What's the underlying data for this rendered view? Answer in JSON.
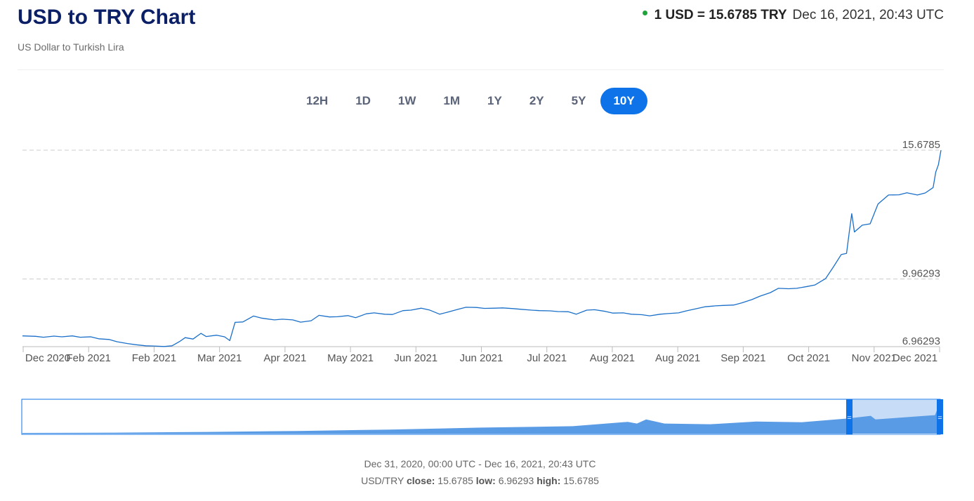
{
  "header": {
    "title": "USD to TRY Chart",
    "subtitle": "US Dollar to Turkish Lira",
    "rate": "1 USD = 15.6785 TRY",
    "timestamp": "Dec 16, 2021, 20:43 UTC",
    "status_color": "#21a33b"
  },
  "ranges": [
    {
      "label": "12H",
      "active": false
    },
    {
      "label": "1D",
      "active": false
    },
    {
      "label": "1W",
      "active": false
    },
    {
      "label": "1M",
      "active": false
    },
    {
      "label": "1Y",
      "active": false
    },
    {
      "label": "2Y",
      "active": false
    },
    {
      "label": "5Y",
      "active": false
    },
    {
      "label": "10Y",
      "active": true
    }
  ],
  "chart_data": {
    "type": "line",
    "title": "",
    "xlabel": "",
    "ylabel": "",
    "ylim": [
      6.96293,
      15.6785
    ],
    "y_ticks": [
      "15.6785",
      "9.96293",
      "6.96293"
    ],
    "x_ticks": [
      "Dec 2020",
      "Feb 2021",
      "Feb 2021",
      "Mar 2021",
      "Apr 2021",
      "May 2021",
      "Jun 2021",
      "Jun 2021",
      "Jul 2021",
      "Aug 2021",
      "Aug 2021",
      "Sep 2021",
      "Oct 2021",
      "Nov 2021",
      "Dec 2021"
    ],
    "x_start": "2020-12-31",
    "x_end": "2021-12-16",
    "series": [
      {
        "color": "#1a6fc9",
        "points": [
          [
            "2020-12-31",
            7.44
          ],
          [
            "2021-01-05",
            7.42
          ],
          [
            "2021-01-08",
            7.38
          ],
          [
            "2021-01-12",
            7.43
          ],
          [
            "2021-01-15",
            7.4
          ],
          [
            "2021-01-19",
            7.44
          ],
          [
            "2021-01-22",
            7.38
          ],
          [
            "2021-01-26",
            7.4
          ],
          [
            "2021-01-29",
            7.31
          ],
          [
            "2021-02-02",
            7.28
          ],
          [
            "2021-02-05",
            7.18
          ],
          [
            "2021-02-09",
            7.1
          ],
          [
            "2021-02-12",
            7.05
          ],
          [
            "2021-02-16",
            7.0
          ],
          [
            "2021-02-19",
            6.99
          ],
          [
            "2021-02-23",
            6.97
          ],
          [
            "2021-02-26",
            7.0
          ],
          [
            "2021-03-01",
            7.2
          ],
          [
            "2021-03-03",
            7.36
          ],
          [
            "2021-03-06",
            7.3
          ],
          [
            "2021-03-09",
            7.55
          ],
          [
            "2021-03-11",
            7.41
          ],
          [
            "2021-03-15",
            7.47
          ],
          [
            "2021-03-18",
            7.4
          ],
          [
            "2021-03-20",
            7.23
          ],
          [
            "2021-03-22",
            8.04
          ],
          [
            "2021-03-25",
            8.06
          ],
          [
            "2021-03-29",
            8.32
          ],
          [
            "2021-04-01",
            8.23
          ],
          [
            "2021-04-06",
            8.15
          ],
          [
            "2021-04-09",
            8.18
          ],
          [
            "2021-04-13",
            8.15
          ],
          [
            "2021-04-16",
            8.05
          ],
          [
            "2021-04-20",
            8.11
          ],
          [
            "2021-04-23",
            8.35
          ],
          [
            "2021-04-27",
            8.28
          ],
          [
            "2021-04-30",
            8.29
          ],
          [
            "2021-05-04",
            8.34
          ],
          [
            "2021-05-07",
            8.25
          ],
          [
            "2021-05-11",
            8.42
          ],
          [
            "2021-05-14",
            8.46
          ],
          [
            "2021-05-18",
            8.4
          ],
          [
            "2021-05-21",
            8.39
          ],
          [
            "2021-05-25",
            8.56
          ],
          [
            "2021-05-28",
            8.58
          ],
          [
            "2021-06-01",
            8.67
          ],
          [
            "2021-06-04",
            8.59
          ],
          [
            "2021-06-08",
            8.4
          ],
          [
            "2021-06-11",
            8.49
          ],
          [
            "2021-06-15",
            8.62
          ],
          [
            "2021-06-18",
            8.71
          ],
          [
            "2021-06-22",
            8.7
          ],
          [
            "2021-06-25",
            8.66
          ],
          [
            "2021-06-29",
            8.67
          ],
          [
            "2021-07-02",
            8.68
          ],
          [
            "2021-07-06",
            8.65
          ],
          [
            "2021-07-09",
            8.62
          ],
          [
            "2021-07-13",
            8.58
          ],
          [
            "2021-07-16",
            8.56
          ],
          [
            "2021-07-20",
            8.55
          ],
          [
            "2021-07-23",
            8.52
          ],
          [
            "2021-07-27",
            8.51
          ],
          [
            "2021-07-30",
            8.4
          ],
          [
            "2021-08-03",
            8.58
          ],
          [
            "2021-08-06",
            8.6
          ],
          [
            "2021-08-10",
            8.53
          ],
          [
            "2021-08-13",
            8.45
          ],
          [
            "2021-08-17",
            8.46
          ],
          [
            "2021-08-20",
            8.4
          ],
          [
            "2021-08-24",
            8.38
          ],
          [
            "2021-08-27",
            8.33
          ],
          [
            "2021-08-31",
            8.4
          ],
          [
            "2021-09-03",
            8.43
          ],
          [
            "2021-09-07",
            8.46
          ],
          [
            "2021-09-10",
            8.55
          ],
          [
            "2021-09-14",
            8.65
          ],
          [
            "2021-09-17",
            8.73
          ],
          [
            "2021-09-21",
            8.77
          ],
          [
            "2021-09-24",
            8.79
          ],
          [
            "2021-09-28",
            8.81
          ],
          [
            "2021-10-01",
            8.9
          ],
          [
            "2021-10-05",
            9.05
          ],
          [
            "2021-10-08",
            9.2
          ],
          [
            "2021-10-12",
            9.36
          ],
          [
            "2021-10-15",
            9.55
          ],
          [
            "2021-10-19",
            9.53
          ],
          [
            "2021-10-22",
            9.55
          ],
          [
            "2021-10-26",
            9.63
          ],
          [
            "2021-10-29",
            9.7
          ],
          [
            "2021-11-02",
            9.98
          ],
          [
            "2021-11-05",
            10.5
          ],
          [
            "2021-11-08",
            11.05
          ],
          [
            "2021-11-10",
            11.1
          ],
          [
            "2021-11-11",
            12.0
          ],
          [
            "2021-11-12",
            12.86
          ],
          [
            "2021-11-13",
            12.05
          ],
          [
            "2021-11-16",
            12.35
          ],
          [
            "2021-11-19",
            12.41
          ],
          [
            "2021-11-22",
            13.29
          ],
          [
            "2021-11-26",
            13.69
          ],
          [
            "2021-11-30",
            13.7
          ],
          [
            "2021-12-03",
            13.79
          ],
          [
            "2021-12-07",
            13.69
          ],
          [
            "2021-12-10",
            13.78
          ],
          [
            "2021-12-13",
            14.02
          ],
          [
            "2021-12-14",
            14.7
          ],
          [
            "2021-12-15",
            15.03
          ],
          [
            "2021-12-16",
            15.6785
          ]
        ]
      }
    ]
  },
  "navigator": {
    "fill_color": "#5a9be6",
    "selection_color": "#c7ddf7",
    "handle_color": "#0e73e8",
    "handle_glyph": "="
  },
  "footer": {
    "date_range": "Dec 31, 2020, 00:00 UTC - Dec 16, 2021, 20:43 UTC",
    "pair": "USD/TRY",
    "close_label": "close:",
    "close_value": "15.6785",
    "low_label": "low:",
    "low_value": "6.96293",
    "high_label": "high:",
    "high_value": "15.6785"
  }
}
